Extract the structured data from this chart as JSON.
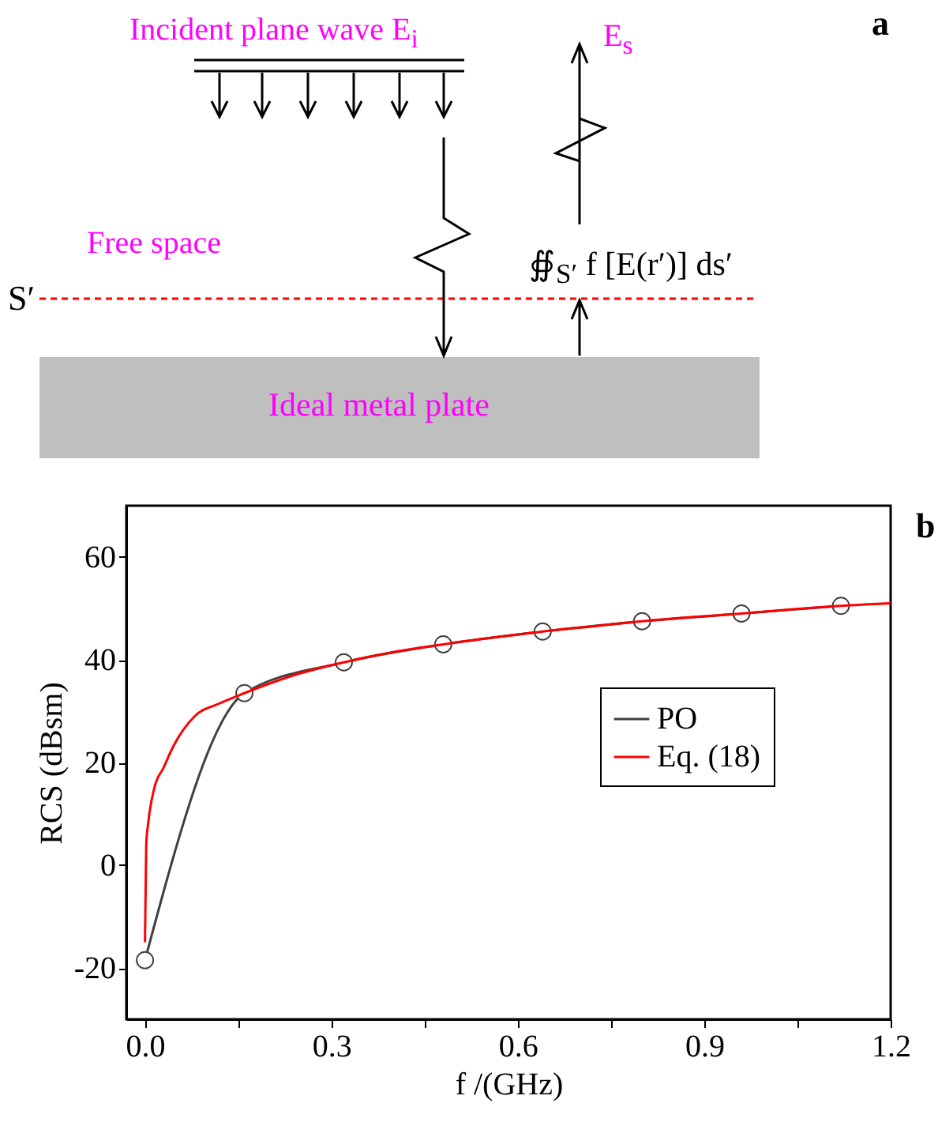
{
  "chart_data": [
    {
      "type": "other",
      "title": "a",
      "annotations": [
        "Incident plane wave E$_{i}$",
        "E$_{s}$",
        "Free space",
        "S′",
        "∯$_{S′}$ f [E(r′)] ds′",
        "Ideal metal plate"
      ]
    },
    {
      "type": "line",
      "title": "b",
      "xlabel": "f /(GHz)",
      "ylabel": "RCS (dBsm)",
      "xlim": [
        -0.03,
        1.2
      ],
      "ylim": [
        -30,
        70
      ],
      "xticks": [
        {
          "value": 0,
          "label": "0.0"
        },
        {
          "value": 0.15,
          "label": null
        },
        0.3,
        {
          "value": 0.45,
          "label": null
        },
        0.6,
        {
          "value": 0.75,
          "label": null
        },
        0.9,
        {
          "value": 1.05,
          "label": null
        },
        1.2
      ],
      "yticks": [
        -20,
        0,
        20,
        40,
        60
      ],
      "legend": "right",
      "grid": false,
      "series": [
        {
          "name": "PO",
          "color": "#404040",
          "marker": "circle",
          "x": [
            0.0,
            0.16,
            0.32,
            0.48,
            0.64,
            0.8,
            0.96,
            1.12
          ],
          "values": [
            -18.5,
            33.5,
            39.5,
            43,
            45.5,
            47.5,
            49,
            50.5
          ]
        },
        {
          "name": "Eq. (18)",
          "color": "#ff0000",
          "marker": "none",
          "x": [
            0.0,
            0.002,
            0.005,
            0.015,
            0.03,
            0.045,
            0.08,
            0.12,
            0.16,
            0.24,
            0.32,
            0.4,
            0.48,
            0.56,
            0.64,
            0.72,
            0.8,
            0.88,
            0.96,
            1.04,
            1.12,
            1.2
          ],
          "values": [
            -15,
            4,
            8,
            15,
            19,
            23,
            29,
            31.5,
            33.5,
            37,
            39.5,
            41.5,
            43,
            44.3,
            45.5,
            46.5,
            47.5,
            48.3,
            49,
            49.8,
            50.5,
            51
          ]
        }
      ]
    }
  ]
}
